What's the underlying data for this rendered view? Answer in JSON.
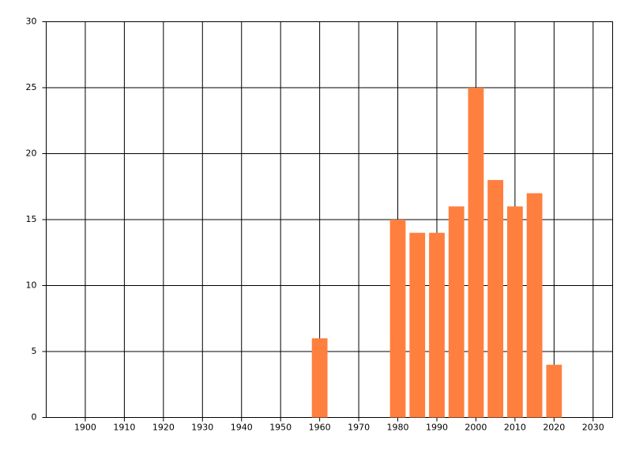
{
  "chart_data": {
    "type": "bar",
    "x": [
      1960,
      1980,
      1985,
      1990,
      1995,
      2000,
      2005,
      2010,
      2015,
      2020
    ],
    "values": [
      6,
      15,
      14,
      14,
      16,
      25,
      18,
      16,
      17,
      4
    ],
    "color": "#ff7f3f",
    "xlim": [
      1890,
      2035
    ],
    "xticks": [
      1900,
      1910,
      1920,
      1930,
      1940,
      1950,
      1960,
      1970,
      1980,
      1990,
      2000,
      2010,
      2020,
      2030
    ],
    "ylim": [
      0,
      30
    ],
    "yticks": [
      0,
      5,
      10,
      15,
      20,
      25,
      30
    ],
    "grid": true
  }
}
